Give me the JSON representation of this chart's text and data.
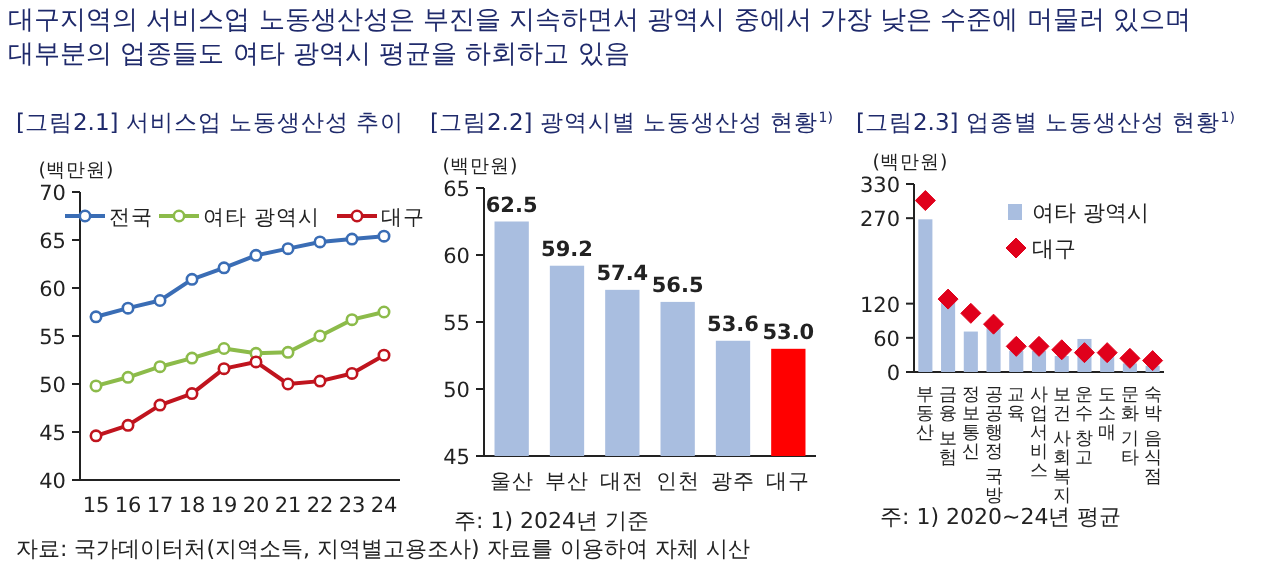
{
  "chart_data": [
    {
      "type": "line",
      "title": "[그림2.1] 서비스업 노동생산성 추이",
      "ylabel": "(백만원)",
      "annotations": [
        "대구지역의 서비스업 노동생산성은 부진을 지속하면서 광역시 중에서 가장 낮은 수준에 머물러 있으며 대부분의 업종들도 여타 광역시 평균을 하회하고 있음",
        "자료: 국가데이터처(지역소득, 지역별고용조사) 자료를 이용하여 자체 시산"
      ],
      "categories": [
        "15",
        "16",
        "17",
        "18",
        "19",
        "20",
        "21",
        "22",
        "23",
        "24"
      ],
      "series": [
        {
          "name": "전국",
          "color": "#3a6db5",
          "values": [
            57.0,
            57.9,
            58.7,
            60.9,
            62.1,
            63.4,
            64.1,
            64.8,
            65.1,
            65.4
          ]
        },
        {
          "name": "여타 광역시",
          "color": "#8cbb4a",
          "values": [
            49.8,
            50.7,
            51.8,
            52.7,
            53.7,
            53.2,
            53.3,
            55.0,
            56.7,
            57.5
          ]
        },
        {
          "name": "대구",
          "color": "#c0141e",
          "values": [
            44.6,
            45.7,
            47.8,
            49.0,
            51.6,
            52.3,
            50.0,
            50.3,
            51.1,
            53.0
          ]
        }
      ],
      "ylim": [
        40,
        70
      ],
      "yticks": [
        40,
        45,
        50,
        55,
        60,
        65,
        70
      ],
      "marker": "circle",
      "legend": "top",
      "grid": false
    },
    {
      "type": "bar",
      "title": "[그림2.2] 광역시별 노동생산성 현황$^{1)}$",
      "ylabel": "(백만원)",
      "annotations": [
        "주: 1) 2024년 기준"
      ],
      "categories": [
        "울산",
        "부산",
        "대전",
        "인천",
        "광주",
        "대구"
      ],
      "values": [
        62.5,
        59.2,
        57.4,
        56.5,
        53.6,
        53.0
      ],
      "value_labels": [
        "62.5",
        "59.2",
        "57.4",
        "56.5",
        "53.6",
        "53.0"
      ],
      "colors": [
        "#a9bee0",
        "#a9bee0",
        "#a9bee0",
        "#a9bee0",
        "#a9bee0",
        "#ff0000"
      ],
      "ylim": [
        45,
        65
      ],
      "yticks": [
        45,
        50,
        55,
        60,
        65
      ],
      "grid": false
    },
    {
      "type": "bar",
      "title": "[그림2.3] 업종별 노동생산성 현황$^{1)}$",
      "ylabel": "(백만원)",
      "annotations": [
        "주: 1) 2020~24년 평균"
      ],
      "categories": [
        "부동산",
        "금융 보험",
        "정보통신",
        "공공행정 국방",
        "교육",
        "사업서비스",
        "보건 사회복지",
        "운수 창고",
        "도소매",
        "문화 기타",
        "숙박 음식점"
      ],
      "series": [
        {
          "name": "여타 광역시",
          "type": "bar",
          "color": "#a9bee0",
          "values": [
            268,
            125,
            71,
            77,
            37,
            37,
            28,
            58,
            28,
            15,
            11
          ]
        },
        {
          "name": "대구",
          "type": "scatter",
          "color": "#e0001b",
          "values": [
            301,
            128,
            103,
            84,
            45,
            45,
            39,
            34,
            34,
            24,
            20
          ]
        }
      ],
      "marker": "diamond",
      "ylim": [
        0,
        330
      ],
      "yticks": [
        0,
        60,
        120,
        270,
        330
      ],
      "legend": "top right",
      "grid": false
    }
  ]
}
